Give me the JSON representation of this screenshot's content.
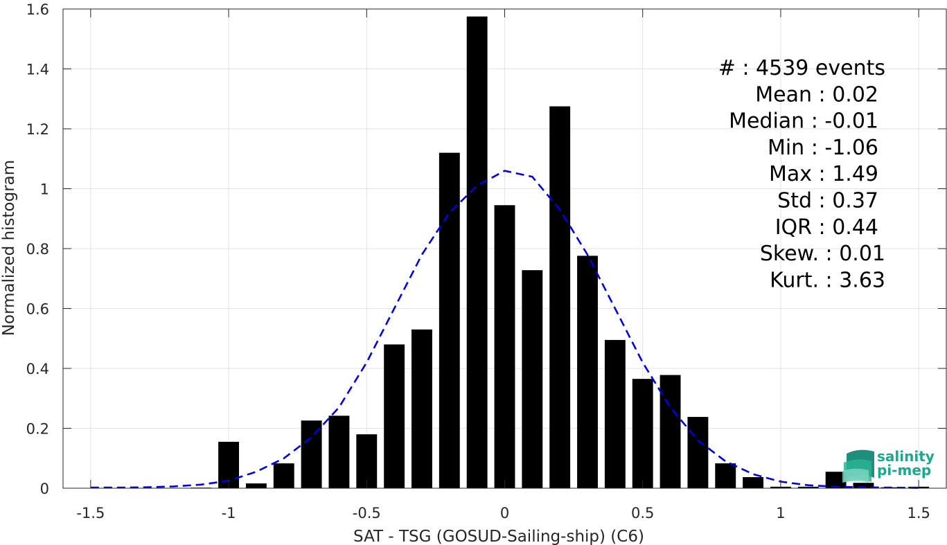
{
  "chart_data": {
    "type": "bar",
    "xlabel": "SAT - TSG (GOSUD-Sailing-ship) (C6)",
    "ylabel": "Normalized histogram",
    "xlim": [
      -1.6,
      1.6
    ],
    "ylim": [
      0,
      1.6
    ],
    "xticks": [
      -1.5,
      -1,
      -0.5,
      0,
      0.5,
      1,
      1.5
    ],
    "xtick_labels": [
      "-1.5",
      "-1",
      "-0.5",
      "0",
      "0.5",
      "1",
      "1.5"
    ],
    "yticks": [
      0,
      0.2,
      0.4,
      0.6,
      0.8,
      1,
      1.2,
      1.4,
      1.6
    ],
    "ytick_labels": [
      "0",
      "0.2",
      "0.4",
      "0.6",
      "0.8",
      "1",
      "1.2",
      "1.4",
      "1.6"
    ],
    "grid": true,
    "bar_width": 0.075,
    "bar_color": "#000000",
    "bars": [
      {
        "x": -1.1,
        "y": 0.002
      },
      {
        "x": -1.0,
        "y": 0.155
      },
      {
        "x": -0.9,
        "y": 0.016
      },
      {
        "x": -0.8,
        "y": 0.083
      },
      {
        "x": -0.7,
        "y": 0.226
      },
      {
        "x": -0.6,
        "y": 0.242
      },
      {
        "x": -0.5,
        "y": 0.18
      },
      {
        "x": -0.4,
        "y": 0.48
      },
      {
        "x": -0.3,
        "y": 0.53
      },
      {
        "x": -0.2,
        "y": 1.12
      },
      {
        "x": -0.1,
        "y": 1.575
      },
      {
        "x": 0.0,
        "y": 0.945
      },
      {
        "x": 0.1,
        "y": 0.728
      },
      {
        "x": 0.2,
        "y": 1.275
      },
      {
        "x": 0.3,
        "y": 0.776
      },
      {
        "x": 0.4,
        "y": 0.495
      },
      {
        "x": 0.5,
        "y": 0.365
      },
      {
        "x": 0.6,
        "y": 0.378
      },
      {
        "x": 0.7,
        "y": 0.238
      },
      {
        "x": 0.8,
        "y": 0.083
      },
      {
        "x": 0.9,
        "y": 0.037
      },
      {
        "x": 1.0,
        "y": 0.005
      },
      {
        "x": 1.1,
        "y": 0.005
      },
      {
        "x": 1.2,
        "y": 0.055
      },
      {
        "x": 1.3,
        "y": 0.018
      },
      {
        "x": 1.4,
        "y": 0.003
      },
      {
        "x": 1.5,
        "y": 0.005
      }
    ],
    "fit_curve": {
      "style": "dashed",
      "color": "#0000dd",
      "x": [
        -1.5,
        -1.4,
        -1.3,
        -1.2,
        -1.1,
        -1.0,
        -0.9,
        -0.8,
        -0.7,
        -0.6,
        -0.5,
        -0.4,
        -0.3,
        -0.2,
        -0.1,
        0.0,
        0.1,
        0.2,
        0.3,
        0.4,
        0.5,
        0.6,
        0.7,
        0.8,
        0.9,
        1.0,
        1.1,
        1.2,
        1.3,
        1.4,
        1.5
      ],
      "y": [
        0.002,
        0.002,
        0.003,
        0.006,
        0.012,
        0.025,
        0.055,
        0.1,
        0.17,
        0.27,
        0.42,
        0.6,
        0.78,
        0.92,
        1.01,
        1.06,
        1.04,
        0.93,
        0.78,
        0.6,
        0.42,
        0.27,
        0.16,
        0.09,
        0.047,
        0.022,
        0.01,
        0.005,
        0.003,
        0.002,
        0.001
      ]
    }
  },
  "stats": [
    {
      "label": "#",
      "value": ": 4539 events"
    },
    {
      "label": "Mean",
      "value": ": 0.02"
    },
    {
      "label": "Median",
      "value": ": -0.01"
    },
    {
      "label": "Min",
      "value": ": -1.06"
    },
    {
      "label": "Max",
      "value": ": 1.49"
    },
    {
      "label": "Std",
      "value": ": 0.37"
    },
    {
      "label": "IQR",
      "value": ": 0.44"
    },
    {
      "label": "Skew.",
      "value": ": 0.01"
    },
    {
      "label": "Kurt.",
      "value": ": 3.63"
    }
  ],
  "logo": {
    "line1": "salinity",
    "line2": "pi-mep",
    "color": "#1aa88e"
  }
}
